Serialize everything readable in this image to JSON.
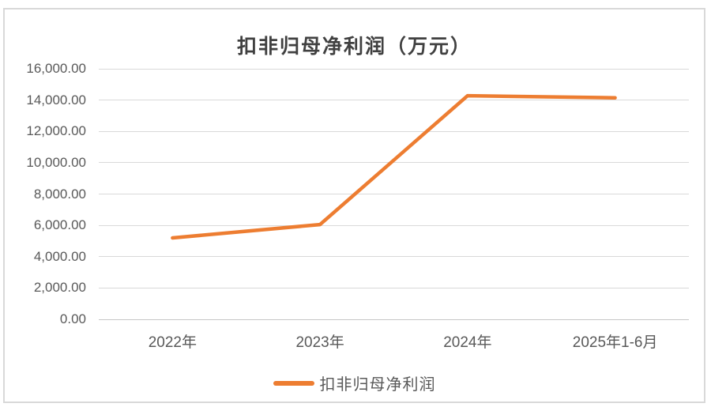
{
  "colors": {
    "line": "#ED7D31",
    "grid": "#D9D9D9",
    "axis": "#C6C6C6",
    "tick_label": "#595959",
    "title": "#404040",
    "frame_border": "#D9D9D9",
    "background": "#FFFFFF"
  },
  "legend": {
    "label": "扣非归母净利润"
  },
  "chart_data": {
    "type": "line",
    "title": "扣非归母净利润（万元）",
    "categories": [
      "2022年",
      "2023年",
      "2024年",
      "2025年1-6月"
    ],
    "series": [
      {
        "name": "扣非归母净利润",
        "color": "#ED7D31",
        "values": [
          5200,
          6050,
          14280,
          14150
        ]
      }
    ],
    "xlabel": "",
    "ylabel": "",
    "ylim": [
      0,
      16000
    ],
    "ytick_step": 2000,
    "ytick_labels": [
      "0.00",
      "2,000.00",
      "4,000.00",
      "6,000.00",
      "8,000.00",
      "10,000.00",
      "12,000.00",
      "14,000.00",
      "16,000.00"
    ],
    "grid": true,
    "legend_position": "bottom"
  }
}
